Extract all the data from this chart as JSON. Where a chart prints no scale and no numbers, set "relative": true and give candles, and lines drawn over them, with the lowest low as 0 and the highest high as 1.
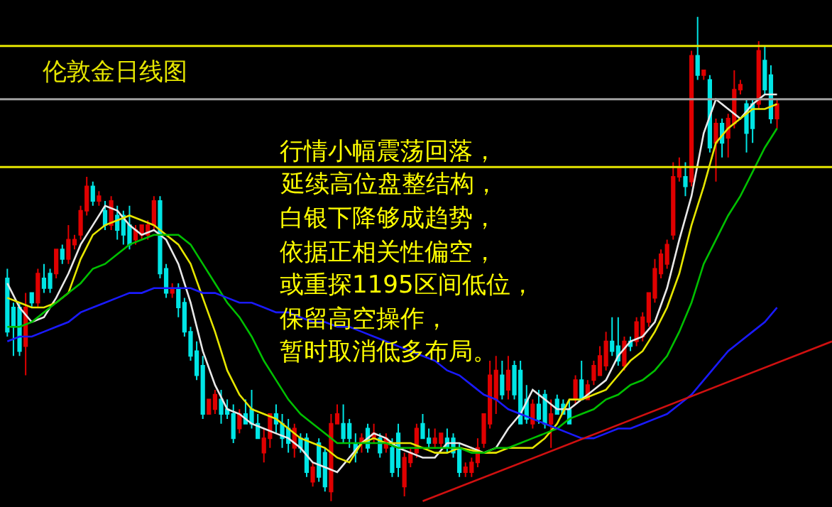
{
  "chart_data": {
    "type": "candlestick",
    "title": "伦敦金日线图",
    "annotations": [
      "行情小幅震荡回落，",
      "延续高位盘整结构，",
      "白银下降够成趋势，",
      "依据正相关性偏空，",
      "或重探1195区间低位，",
      "保留高空操作，",
      "暂时取消低多布局。"
    ],
    "relative": true,
    "tick_labels": false,
    "categories": [
      null,
      null,
      null,
      null,
      null,
      null,
      null,
      null,
      null,
      null,
      null,
      null,
      null,
      null,
      null,
      null,
      null,
      null,
      null,
      null,
      null,
      null,
      null,
      null,
      null,
      null,
      null,
      null,
      null,
      null,
      null,
      null,
      null,
      null,
      null,
      null,
      null,
      null,
      null,
      null,
      null,
      null,
      null,
      null,
      null,
      null,
      null,
      null,
      null,
      null,
      null,
      null,
      null,
      null,
      null,
      null,
      null,
      null,
      null,
      null,
      null,
      null,
      null,
      null,
      null,
      null,
      null,
      null,
      null,
      null,
      null,
      null,
      null,
      null,
      null,
      null,
      null,
      null,
      null,
      null,
      null,
      null,
      null,
      null,
      null,
      null,
      null,
      null,
      null,
      null,
      null,
      null,
      null,
      null,
      null,
      null,
      null,
      null,
      null,
      null,
      null,
      null,
      null,
      null,
      null,
      null,
      null,
      null,
      null,
      null,
      null,
      null,
      null,
      null,
      null,
      null,
      null,
      null,
      null,
      null,
      null,
      null,
      null,
      null,
      null,
      null,
      null,
      null,
      null,
      null,
      null,
      null,
      null,
      null,
      null,
      null
    ],
    "ohlc": [
      [
        0.46,
        0.48,
        0.34,
        0.35
      ],
      [
        0.4,
        0.41,
        0.3,
        0.36
      ],
      [
        0.4,
        0.41,
        0.3,
        0.31
      ],
      [
        0.32,
        0.43,
        0.26,
        0.4
      ],
      [
        0.43,
        0.43,
        0.4,
        0.41
      ],
      [
        0.41,
        0.48,
        0.4,
        0.47
      ],
      [
        0.46,
        0.49,
        0.43,
        0.44
      ],
      [
        0.47,
        0.48,
        0.43,
        0.44
      ],
      [
        0.47,
        0.52,
        0.46,
        0.52
      ],
      [
        0.52,
        0.53,
        0.49,
        0.5
      ],
      [
        0.5,
        0.57,
        0.49,
        0.54
      ],
      [
        0.53,
        0.55,
        0.52,
        0.54
      ],
      [
        0.55,
        0.61,
        0.54,
        0.6
      ],
      [
        0.6,
        0.67,
        0.59,
        0.65
      ],
      [
        0.65,
        0.66,
        0.61,
        0.62
      ],
      [
        0.62,
        0.64,
        0.61,
        0.63
      ],
      [
        0.6,
        0.62,
        0.56,
        0.57
      ],
      [
        0.57,
        0.63,
        0.56,
        0.62
      ],
      [
        0.59,
        0.61,
        0.54,
        0.56
      ],
      [
        0.59,
        0.6,
        0.53,
        0.55
      ],
      [
        0.57,
        0.61,
        0.52,
        0.53
      ],
      [
        0.54,
        0.57,
        0.53,
        0.56
      ],
      [
        0.55,
        0.57,
        0.54,
        0.57
      ],
      [
        0.55,
        0.58,
        0.54,
        0.57
      ],
      [
        0.57,
        0.63,
        0.56,
        0.62
      ],
      [
        0.62,
        0.63,
        0.46,
        0.47
      ],
      [
        0.48,
        0.49,
        0.42,
        0.43
      ],
      [
        0.43,
        0.45,
        0.42,
        0.44
      ],
      [
        0.44,
        0.45,
        0.38,
        0.4
      ],
      [
        0.41,
        0.42,
        0.34,
        0.35
      ],
      [
        0.35,
        0.36,
        0.29,
        0.3
      ],
      [
        0.31,
        0.33,
        0.25,
        0.26
      ],
      [
        0.28,
        0.3,
        0.17,
        0.18
      ],
      [
        0.18,
        0.21,
        0.18,
        0.21
      ],
      [
        0.19,
        0.23,
        0.18,
        0.22
      ],
      [
        0.21,
        0.23,
        0.16,
        0.18
      ],
      [
        0.19,
        0.21,
        0.17,
        0.18
      ],
      [
        0.18,
        0.2,
        0.12,
        0.13
      ],
      [
        0.15,
        0.19,
        0.14,
        0.18
      ],
      [
        0.18,
        0.21,
        0.16,
        0.16
      ],
      [
        0.19,
        0.23,
        0.15,
        0.16
      ],
      [
        0.16,
        0.18,
        0.13,
        0.13
      ],
      [
        0.1,
        0.15,
        0.08,
        0.13
      ],
      [
        0.13,
        0.18,
        0.11,
        0.18
      ],
      [
        0.18,
        0.2,
        0.14,
        0.16
      ],
      [
        0.16,
        0.18,
        0.11,
        0.13
      ],
      [
        0.15,
        0.17,
        0.1,
        0.12
      ],
      [
        0.11,
        0.16,
        0.09,
        0.15
      ],
      [
        0.13,
        0.14,
        0.1,
        0.11
      ],
      [
        0.13,
        0.14,
        0.05,
        0.06
      ],
      [
        0.04,
        0.08,
        0.03,
        0.07
      ],
      [
        0.12,
        0.13,
        0.04,
        0.05
      ],
      [
        0.1,
        0.11,
        0.02,
        0.03
      ],
      [
        0.02,
        0.18,
        0.0,
        0.16
      ],
      [
        0.16,
        0.2,
        0.16,
        0.18
      ],
      [
        0.16,
        0.2,
        0.12,
        0.13
      ],
      [
        0.16,
        0.17,
        0.11,
        0.13
      ],
      [
        0.12,
        0.14,
        0.08,
        0.1
      ],
      [
        0.12,
        0.14,
        0.1,
        0.13
      ],
      [
        0.15,
        0.16,
        0.1,
        0.11
      ],
      [
        0.13,
        0.16,
        0.12,
        0.14
      ],
      [
        0.13,
        0.14,
        0.09,
        0.1
      ],
      [
        0.11,
        0.14,
        0.1,
        0.13
      ],
      [
        0.11,
        0.13,
        0.05,
        0.06
      ],
      [
        0.14,
        0.16,
        0.05,
        0.07
      ],
      [
        0.03,
        0.1,
        0.01,
        0.09
      ],
      [
        0.08,
        0.11,
        0.07,
        0.1
      ],
      [
        0.1,
        0.16,
        0.09,
        0.15
      ],
      [
        0.16,
        0.18,
        0.13,
        0.13
      ],
      [
        0.13,
        0.15,
        0.11,
        0.12
      ],
      [
        0.12,
        0.15,
        0.11,
        0.13
      ],
      [
        0.12,
        0.14,
        0.11,
        0.14
      ],
      [
        0.13,
        0.15,
        0.1,
        0.11
      ],
      [
        0.13,
        0.14,
        0.09,
        0.1
      ],
      [
        0.11,
        0.12,
        0.05,
        0.06
      ],
      [
        0.06,
        0.08,
        0.05,
        0.07
      ],
      [
        0.06,
        0.09,
        0.05,
        0.08
      ],
      [
        0.08,
        0.13,
        0.07,
        0.11
      ],
      [
        0.12,
        0.18,
        0.11,
        0.18
      ],
      [
        0.16,
        0.29,
        0.15,
        0.26
      ],
      [
        0.21,
        0.3,
        0.18,
        0.27
      ],
      [
        0.26,
        0.29,
        0.21,
        0.22
      ],
      [
        0.23,
        0.3,
        0.21,
        0.27
      ],
      [
        0.28,
        0.29,
        0.21,
        0.22
      ],
      [
        0.27,
        0.29,
        0.16,
        0.16
      ],
      [
        0.21,
        0.24,
        0.16,
        0.17
      ],
      [
        0.16,
        0.21,
        0.15,
        0.2
      ],
      [
        0.2,
        0.23,
        0.16,
        0.17
      ],
      [
        0.22,
        0.23,
        0.15,
        0.16
      ],
      [
        0.16,
        0.21,
        0.11,
        0.18
      ],
      [
        0.21,
        0.22,
        0.18,
        0.18
      ],
      [
        0.2,
        0.21,
        0.18,
        0.18
      ],
      [
        0.19,
        0.21,
        0.16,
        0.16
      ],
      [
        0.21,
        0.26,
        0.2,
        0.25
      ],
      [
        0.25,
        0.29,
        0.21,
        0.21
      ],
      [
        0.21,
        0.25,
        0.21,
        0.24
      ],
      [
        0.25,
        0.29,
        0.24,
        0.28
      ],
      [
        0.26,
        0.32,
        0.26,
        0.3
      ],
      [
        0.28,
        0.35,
        0.27,
        0.33
      ],
      [
        0.33,
        0.38,
        0.3,
        0.31
      ],
      [
        0.32,
        0.38,
        0.28,
        0.29
      ],
      [
        0.28,
        0.34,
        0.27,
        0.33
      ],
      [
        0.33,
        0.34,
        0.31,
        0.32
      ],
      [
        0.33,
        0.38,
        0.32,
        0.37
      ],
      [
        0.34,
        0.39,
        0.33,
        0.38
      ],
      [
        0.37,
        0.43,
        0.36,
        0.43
      ],
      [
        0.42,
        0.5,
        0.41,
        0.48
      ],
      [
        0.47,
        0.52,
        0.46,
        0.51
      ],
      [
        0.49,
        0.54,
        0.48,
        0.53
      ],
      [
        0.55,
        0.7,
        0.54,
        0.67
      ],
      [
        0.67,
        0.71,
        0.66,
        0.69
      ],
      [
        0.67,
        0.7,
        0.63,
        0.65
      ],
      [
        0.66,
        0.93,
        0.65,
        0.92
      ],
      [
        0.92,
        1.0,
        0.87,
        0.88
      ],
      [
        0.88,
        0.89,
        0.87,
        0.89
      ],
      [
        0.87,
        0.88,
        0.72,
        0.73
      ],
      [
        0.74,
        0.79,
        0.66,
        0.78
      ],
      [
        0.78,
        0.79,
        0.71,
        0.74
      ],
      [
        0.75,
        0.8,
        0.71,
        0.79
      ],
      [
        0.78,
        0.89,
        0.77,
        0.85
      ],
      [
        0.85,
        0.87,
        0.84,
        0.86
      ],
      [
        0.82,
        0.83,
        0.72,
        0.76
      ],
      [
        0.82,
        0.83,
        0.74,
        0.77
      ],
      [
        0.82,
        0.95,
        0.81,
        0.93
      ],
      [
        0.91,
        0.94,
        0.84,
        0.85
      ],
      [
        0.88,
        0.9,
        0.78,
        0.79
      ],
      [
        0.79,
        0.83,
        0.77,
        0.82
      ],
      null,
      null,
      null,
      null,
      null,
      null,
      null,
      null,
      null
    ],
    "colors": [
      "#00e5e5",
      "#00e5e5",
      "#00e5e5",
      "#e00000",
      "#00e5e5",
      "#e00000",
      "#00e5e5",
      "#00e5e5",
      "#e00000",
      "#00e5e5",
      "#e00000",
      "#e00000",
      "#e00000",
      "#e00000",
      "#00e5e5",
      "#e00000",
      "#00e5e5",
      "#e00000",
      "#00e5e5",
      "#00e5e5",
      "#00e5e5",
      "#e00000",
      "#e00000",
      "#e00000",
      "#e00000",
      "#00e5e5",
      "#00e5e5",
      "#e00000",
      "#00e5e5",
      "#00e5e5",
      "#00e5e5",
      "#00e5e5",
      "#00e5e5",
      "#e00000",
      "#e00000",
      "#00e5e5",
      "#00e5e5",
      "#00e5e5",
      "#e00000",
      "#00e5e5",
      "#00e5e5",
      "#00e5e5",
      "#e00000",
      "#e00000",
      "#00e5e5",
      "#00e5e5",
      "#00e5e5",
      "#e00000",
      "#00e5e5",
      "#00e5e5",
      "#e00000",
      "#00e5e5",
      "#00e5e5",
      "#e00000",
      "#e00000",
      "#00e5e5",
      "#00e5e5",
      "#00e5e5",
      "#e00000",
      "#00e5e5",
      "#e00000",
      "#00e5e5",
      "#e00000",
      "#00e5e5",
      "#00e5e5",
      "#e00000",
      "#e00000",
      "#e00000",
      "#00e5e5",
      "#00e5e5",
      "#e00000",
      "#e00000",
      "#00e5e5",
      "#00e5e5",
      "#00e5e5",
      "#e00000",
      "#e00000",
      "#e00000",
      "#e00000",
      "#e00000",
      "#e00000",
      "#00e5e5",
      "#e00000",
      "#00e5e5",
      "#00e5e5",
      "#00e5e5",
      "#e00000",
      "#00e5e5",
      "#00e5e5",
      "#e00000",
      "#00e5e5",
      "#00e5e5",
      "#00e5e5",
      "#e00000",
      "#00e5e5",
      "#e00000",
      "#e00000",
      "#e00000",
      "#e00000",
      "#00e5e5",
      "#00e5e5",
      "#e00000",
      "#00e5e5",
      "#e00000",
      "#e00000",
      "#e00000",
      "#e00000",
      "#e00000",
      "#e00000",
      "#e00000",
      "#e00000",
      "#00e5e5",
      "#e00000",
      "#00e5e5",
      "#e00000",
      "#00e5e5",
      "#e00000",
      "#00e5e5",
      "#e00000",
      "#e00000",
      "#e00000",
      "#00e5e5",
      "#00e5e5",
      "#e00000",
      "#00e5e5",
      "#00e5e5",
      "#e00000",
      null,
      null,
      null,
      null,
      null,
      null,
      null,
      null,
      null
    ],
    "series": [
      {
        "type": "line",
        "color": "#e8e8e8",
        "values": [
          0.45,
          null,
          0.4,
          null,
          0.37,
          null,
          0.38,
          null,
          0.42,
          null,
          0.47,
          null,
          0.53,
          null,
          0.57,
          null,
          0.61,
          null,
          0.6,
          null,
          0.57,
          null,
          0.55,
          null,
          0.56,
          null,
          0.54,
          null,
          0.49,
          null,
          0.41,
          null,
          0.31,
          null,
          0.24,
          null,
          0.19,
          null,
          0.18,
          null,
          0.16,
          null,
          0.15,
          null,
          0.14,
          null,
          0.13,
          null,
          0.11,
          null,
          0.08,
          null,
          0.07,
          null,
          0.06,
          null,
          0.09,
          null,
          0.12,
          null,
          0.14,
          null,
          0.13,
          null,
          0.11,
          null,
          0.1,
          null,
          0.09,
          null,
          0.09,
          null,
          0.12,
          null,
          0.12,
          null,
          0.11,
          null,
          0.1,
          null,
          0.11,
          null,
          0.15,
          null,
          0.18,
          null,
          0.23,
          null,
          0.21,
          null,
          0.19,
          null,
          0.19,
          null,
          0.21,
          null,
          0.23,
          null,
          0.25,
          null,
          0.3,
          null,
          0.33,
          null,
          0.34,
          null,
          0.37,
          null,
          0.44,
          null,
          0.54,
          null,
          0.63,
          null,
          0.76,
          null,
          0.83,
          null,
          0.81,
          null,
          0.79,
          null,
          0.82,
          null,
          0.84,
          null,
          0.84,
          null,
          null,
          null,
          null,
          null,
          null,
          null,
          null,
          null
        ]
      },
      {
        "type": "line",
        "color": "#e6e600",
        "values": [
          0.42,
          null,
          0.41,
          null,
          0.4,
          null,
          0.4,
          null,
          0.41,
          null,
          0.43,
          null,
          0.5,
          null,
          0.55,
          null,
          0.57,
          null,
          0.58,
          null,
          0.59,
          null,
          0.58,
          null,
          0.57,
          null,
          0.55,
          null,
          0.53,
          null,
          0.49,
          null,
          0.42,
          null,
          0.35,
          null,
          0.27,
          null,
          0.22,
          null,
          0.19,
          null,
          0.18,
          null,
          0.17,
          null,
          0.15,
          null,
          0.13,
          null,
          0.12,
          null,
          0.11,
          null,
          0.09,
          null,
          0.08,
          null,
          0.12,
          null,
          0.13,
          null,
          0.12,
          null,
          0.12,
          null,
          0.12,
          null,
          0.11,
          null,
          0.1,
          null,
          0.1,
          null,
          0.11,
          null,
          null,
          null,
          0.1,
          null,
          0.1,
          null,
          0.11,
          null,
          0.11,
          null,
          0.11,
          null,
          0.13,
          null,
          0.16,
          null,
          0.21,
          null,
          0.21,
          null,
          0.22,
          null,
          0.23,
          null,
          0.26,
          null,
          0.29,
          null,
          0.31,
          null,
          0.35,
          null,
          0.4,
          null,
          0.47,
          null,
          0.57,
          null,
          0.65,
          null,
          0.74,
          null,
          0.77,
          null,
          0.79,
          null,
          0.81,
          null,
          0.81,
          null,
          0.82,
          null,
          null,
          null,
          null,
          null,
          null,
          null,
          null,
          null
        ]
      },
      {
        "type": "line",
        "color": "#00c000",
        "values": [
          0.36,
          null,
          0.36,
          null,
          0.37,
          null,
          0.39,
          null,
          0.41,
          null,
          0.43,
          null,
          0.45,
          null,
          0.48,
          null,
          0.49,
          null,
          0.51,
          null,
          0.53,
          null,
          0.54,
          null,
          0.55,
          null,
          0.55,
          null,
          0.55,
          null,
          0.53,
          null,
          0.49,
          null,
          0.45,
          null,
          0.41,
          null,
          0.38,
          null,
          0.34,
          null,
          0.29,
          null,
          0.25,
          null,
          0.21,
          null,
          0.18,
          null,
          0.16,
          null,
          0.14,
          null,
          0.12,
          null,
          0.12,
          null,
          0.12,
          null,
          0.12,
          null,
          0.12,
          null,
          0.11,
          null,
          0.11,
          null,
          0.11,
          null,
          0.11,
          null,
          0.11,
          null,
          0.11,
          null,
          0.1,
          null,
          0.1,
          null,
          0.11,
          null,
          0.11,
          null,
          0.12,
          null,
          0.13,
          null,
          0.14,
          null,
          0.15,
          null,
          0.17,
          null,
          0.18,
          null,
          0.19,
          null,
          0.21,
          null,
          0.22,
          null,
          0.24,
          null,
          0.25,
          null,
          0.27,
          null,
          0.3,
          null,
          0.35,
          null,
          0.41,
          null,
          0.49,
          null,
          0.54,
          null,
          0.59,
          null,
          0.63,
          null,
          0.68,
          null,
          0.73,
          null,
          0.77,
          null,
          null,
          null,
          null,
          null,
          null,
          null,
          null,
          null
        ]
      },
      {
        "type": "line",
        "color": "#1a1aff",
        "values": [
          0.33,
          null,
          0.34,
          null,
          0.34,
          null,
          0.35,
          null,
          0.36,
          null,
          0.37,
          null,
          0.39,
          null,
          0.4,
          null,
          0.41,
          null,
          0.42,
          null,
          0.43,
          null,
          0.43,
          null,
          0.44,
          null,
          0.44,
          null,
          0.44,
          null,
          0.44,
          null,
          0.43,
          null,
          0.43,
          null,
          0.42,
          null,
          0.41,
          null,
          0.41,
          null,
          0.4,
          null,
          0.39,
          null,
          0.39,
          null,
          0.38,
          null,
          0.37,
          null,
          0.37,
          null,
          0.36,
          null,
          0.36,
          null,
          0.35,
          null,
          0.34,
          null,
          0.33,
          null,
          0.32,
          null,
          0.31,
          null,
          0.3,
          null,
          0.29,
          null,
          0.27,
          null,
          0.26,
          null,
          0.24,
          null,
          0.22,
          null,
          0.21,
          null,
          0.19,
          null,
          0.18,
          null,
          0.17,
          null,
          0.16,
          null,
          0.15,
          null,
          0.14,
          null,
          0.13,
          null,
          0.13,
          null,
          0.14,
          null,
          0.15,
          null,
          0.15,
          null,
          0.16,
          null,
          0.17,
          null,
          0.18,
          null,
          0.2,
          null,
          0.22,
          null,
          0.25,
          null,
          0.28,
          null,
          0.31,
          null,
          0.33,
          null,
          0.35,
          null,
          0.37,
          null,
          0.4,
          null,
          null,
          null,
          null,
          null,
          null,
          null,
          null,
          null
        ]
      },
      {
        "type": "line",
        "color": "#d01010",
        "values": [
          null,
          null,
          null,
          null,
          null,
          null,
          null,
          null,
          null,
          null,
          null,
          null,
          null,
          null,
          null,
          null,
          null,
          null,
          null,
          null,
          null,
          null,
          null,
          null,
          null,
          null,
          null,
          null,
          null,
          null,
          null,
          null,
          null,
          null,
          null,
          null,
          null,
          null,
          null,
          null,
          null,
          null,
          null,
          null,
          null,
          null,
          null,
          null,
          null,
          null,
          null,
          null,
          null,
          null,
          null,
          null,
          null,
          null,
          null,
          null,
          null,
          null,
          null,
          null,
          null,
          null,
          null,
          null,
          0.0,
          null,
          null,
          null,
          null,
          null,
          null,
          null,
          null,
          null,
          null,
          null,
          null,
          null,
          null,
          null,
          null,
          null,
          null,
          null,
          null,
          null,
          null,
          null,
          null,
          null,
          null,
          null,
          null,
          null,
          null,
          null,
          null,
          null,
          null,
          null,
          null,
          null,
          null,
          null,
          null,
          null,
          null,
          null,
          null,
          null,
          null,
          null,
          null,
          null,
          null,
          null,
          null,
          null,
          null,
          null,
          null,
          null,
          null,
          null,
          null,
          null,
          null,
          null,
          null,
          null,
          null,
          0.33
        ]
      }
    ],
    "ref_lines": [
      {
        "axis": "y",
        "value": 0.94,
        "color": "#e6e600"
      },
      {
        "axis": "y",
        "value": 0.83,
        "color": "#a0a0a0"
      },
      {
        "axis": "y",
        "value": 0.69,
        "color": "#e6e600"
      }
    ]
  }
}
